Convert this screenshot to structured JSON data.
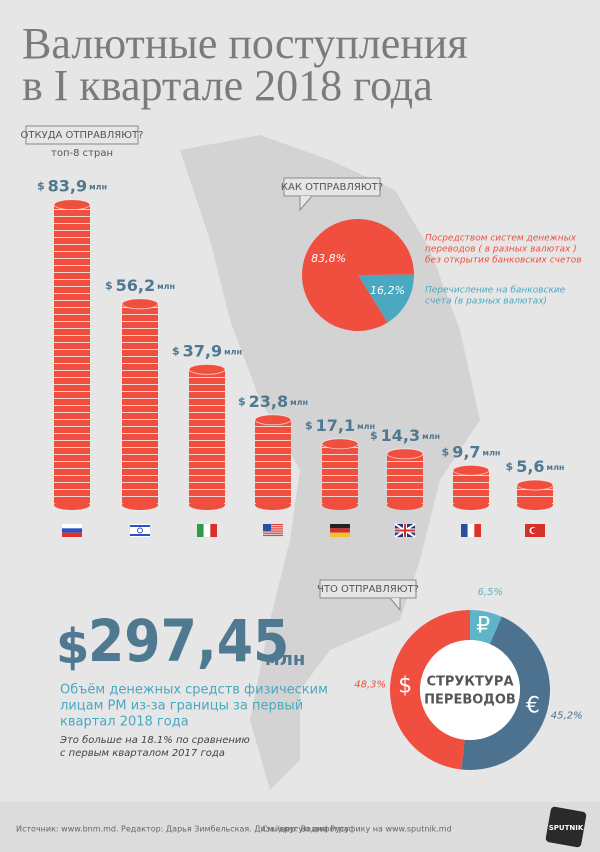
{
  "header": {
    "title_lines": [
      "Валютные поступления",
      "в I квартале 2018 года"
    ]
  },
  "chart_data": [
    {
      "type": "bar",
      "title": "ОТКУДА ОТПРАВЛЯЮТ?",
      "subtitle": "топ-8 стран",
      "categories": [
        null,
        null,
        null,
        null,
        null,
        null,
        null,
        null
      ],
      "values": [
        83.9,
        56.2,
        37.9,
        23.8,
        17.1,
        14.3,
        9.7,
        5.6
      ],
      "value_labels": [
        "83,9",
        "56,2",
        "37,9",
        "23,8",
        "17,1",
        "14,3",
        "9,7",
        "5,6"
      ],
      "unit_prefix": "$",
      "unit_suffix": "млн",
      "color": "#f04e3e"
    },
    {
      "type": "pie",
      "title": "КАК ОТПРАВЛЯЮТ?",
      "labels": [
        [
          "Посредством систем денежных",
          "переводов ( в разных валютах )",
          "без открытия банковских счетов"
        ],
        [
          "Перечисление на банковские",
          "счета (в разных валютах)"
        ]
      ],
      "values": [
        83.8,
        16.2
      ],
      "value_labels": [
        "83,8%",
        "16,2%"
      ],
      "colors": [
        "#f04e3e",
        "#4aa8c0"
      ]
    },
    {
      "type": "donut",
      "title": "ЧТО ОТПРАВЛЯЮТ?",
      "center_label_lines": [
        "СТРУКТУРА",
        "ПЕРЕВОДОВ"
      ],
      "categories": [
        "₽",
        "€",
        "$"
      ],
      "values": [
        6.5,
        45.2,
        48.3
      ],
      "value_labels": [
        "6,5%",
        "45,2%",
        "48,3%"
      ],
      "colors": [
        "#5fb4c8",
        "#4d7290",
        "#f04e3e"
      ]
    }
  ],
  "summary": {
    "currency": "$",
    "amount": "297,45",
    "unit": "млн",
    "description_lines": [
      "Объём  денежных средств физическим",
      "лицам РМ из-за границы за первый",
      "квартал 2018 года"
    ],
    "note_lines": [
      "Это больше на 18.1% по сравнению",
      "с первым кварталом 2017 года"
    ]
  },
  "footer": {
    "source": "Источник: www.bnm.md. Редактор: Дарья Зимбельская. Дизайнер: Вадим Русу.",
    "more": "См. другую инфографику на www.sputnik.md",
    "logo": "SPUTNIK"
  }
}
